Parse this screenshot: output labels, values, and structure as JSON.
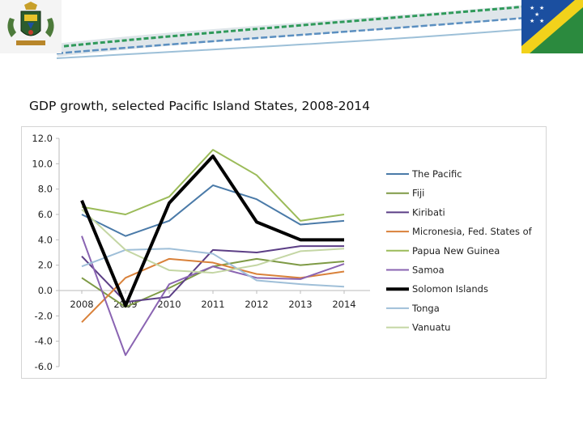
{
  "chart_data": {
    "type": "line",
    "title": "GDP growth, selected Pacific Island States, 2008-2014",
    "x": [
      "2008",
      "2009",
      "2010",
      "2011",
      "2012",
      "2013",
      "2014"
    ],
    "ylim": [
      -6.0,
      12.0
    ],
    "yticks": [
      "12.0",
      "10.0",
      "8.0",
      "6.0",
      "4.0",
      "2.0",
      "0.0",
      "-2.0",
      "-4.0",
      "-6.0"
    ],
    "grid": false,
    "legend": "right",
    "series": [
      {
        "name": "The Pacific",
        "color": "#4a7aa8",
        "width": 2,
        "values": [
          6.0,
          4.3,
          5.5,
          8.3,
          7.2,
          5.2,
          5.5
        ]
      },
      {
        "name": "Fiji",
        "color": "#7e9a45",
        "width": 2,
        "values": [
          1.0,
          -1.3,
          0.2,
          1.9,
          2.5,
          2.0,
          2.3
        ]
      },
      {
        "name": "Kiribati",
        "color": "#5c3f86",
        "width": 2,
        "values": [
          2.7,
          -0.9,
          -0.5,
          3.2,
          3.0,
          3.5,
          3.5
        ]
      },
      {
        "name": "Micronesia, Fed. States of",
        "color": "#d9813a",
        "width": 2,
        "values": [
          -2.5,
          1.0,
          2.5,
          2.2,
          1.3,
          1.0,
          1.5
        ]
      },
      {
        "name": "Papua New Guinea",
        "color": "#9bbb59",
        "width": 2,
        "values": [
          6.6,
          6.0,
          7.4,
          11.1,
          9.1,
          5.5,
          6.0
        ]
      },
      {
        "name": "Samoa",
        "color": "#8a64b2",
        "width": 2,
        "values": [
          4.3,
          -5.1,
          0.5,
          1.9,
          1.0,
          0.9,
          2.1
        ]
      },
      {
        "name": "Solomon Islands",
        "color": "#000000",
        "width": 4,
        "values": [
          7.1,
          -1.2,
          6.9,
          10.6,
          5.4,
          4.0,
          4.0
        ]
      },
      {
        "name": "Tonga",
        "color": "#9fbfd8",
        "width": 2,
        "values": [
          1.9,
          3.2,
          3.3,
          2.9,
          0.8,
          0.5,
          0.3
        ]
      },
      {
        "name": "Vanuatu",
        "color": "#c4d6a4",
        "width": 2,
        "values": [
          6.4,
          3.2,
          1.6,
          1.4,
          2.0,
          3.1,
          3.3
        ]
      }
    ]
  },
  "colors": {
    "banner_green": "#2f9a5a",
    "banner_blue": "#5b8fc0",
    "flag_blue": "#1b4fa0",
    "flag_green": "#2b8a3e",
    "flag_yellow": "#f2d21b"
  }
}
